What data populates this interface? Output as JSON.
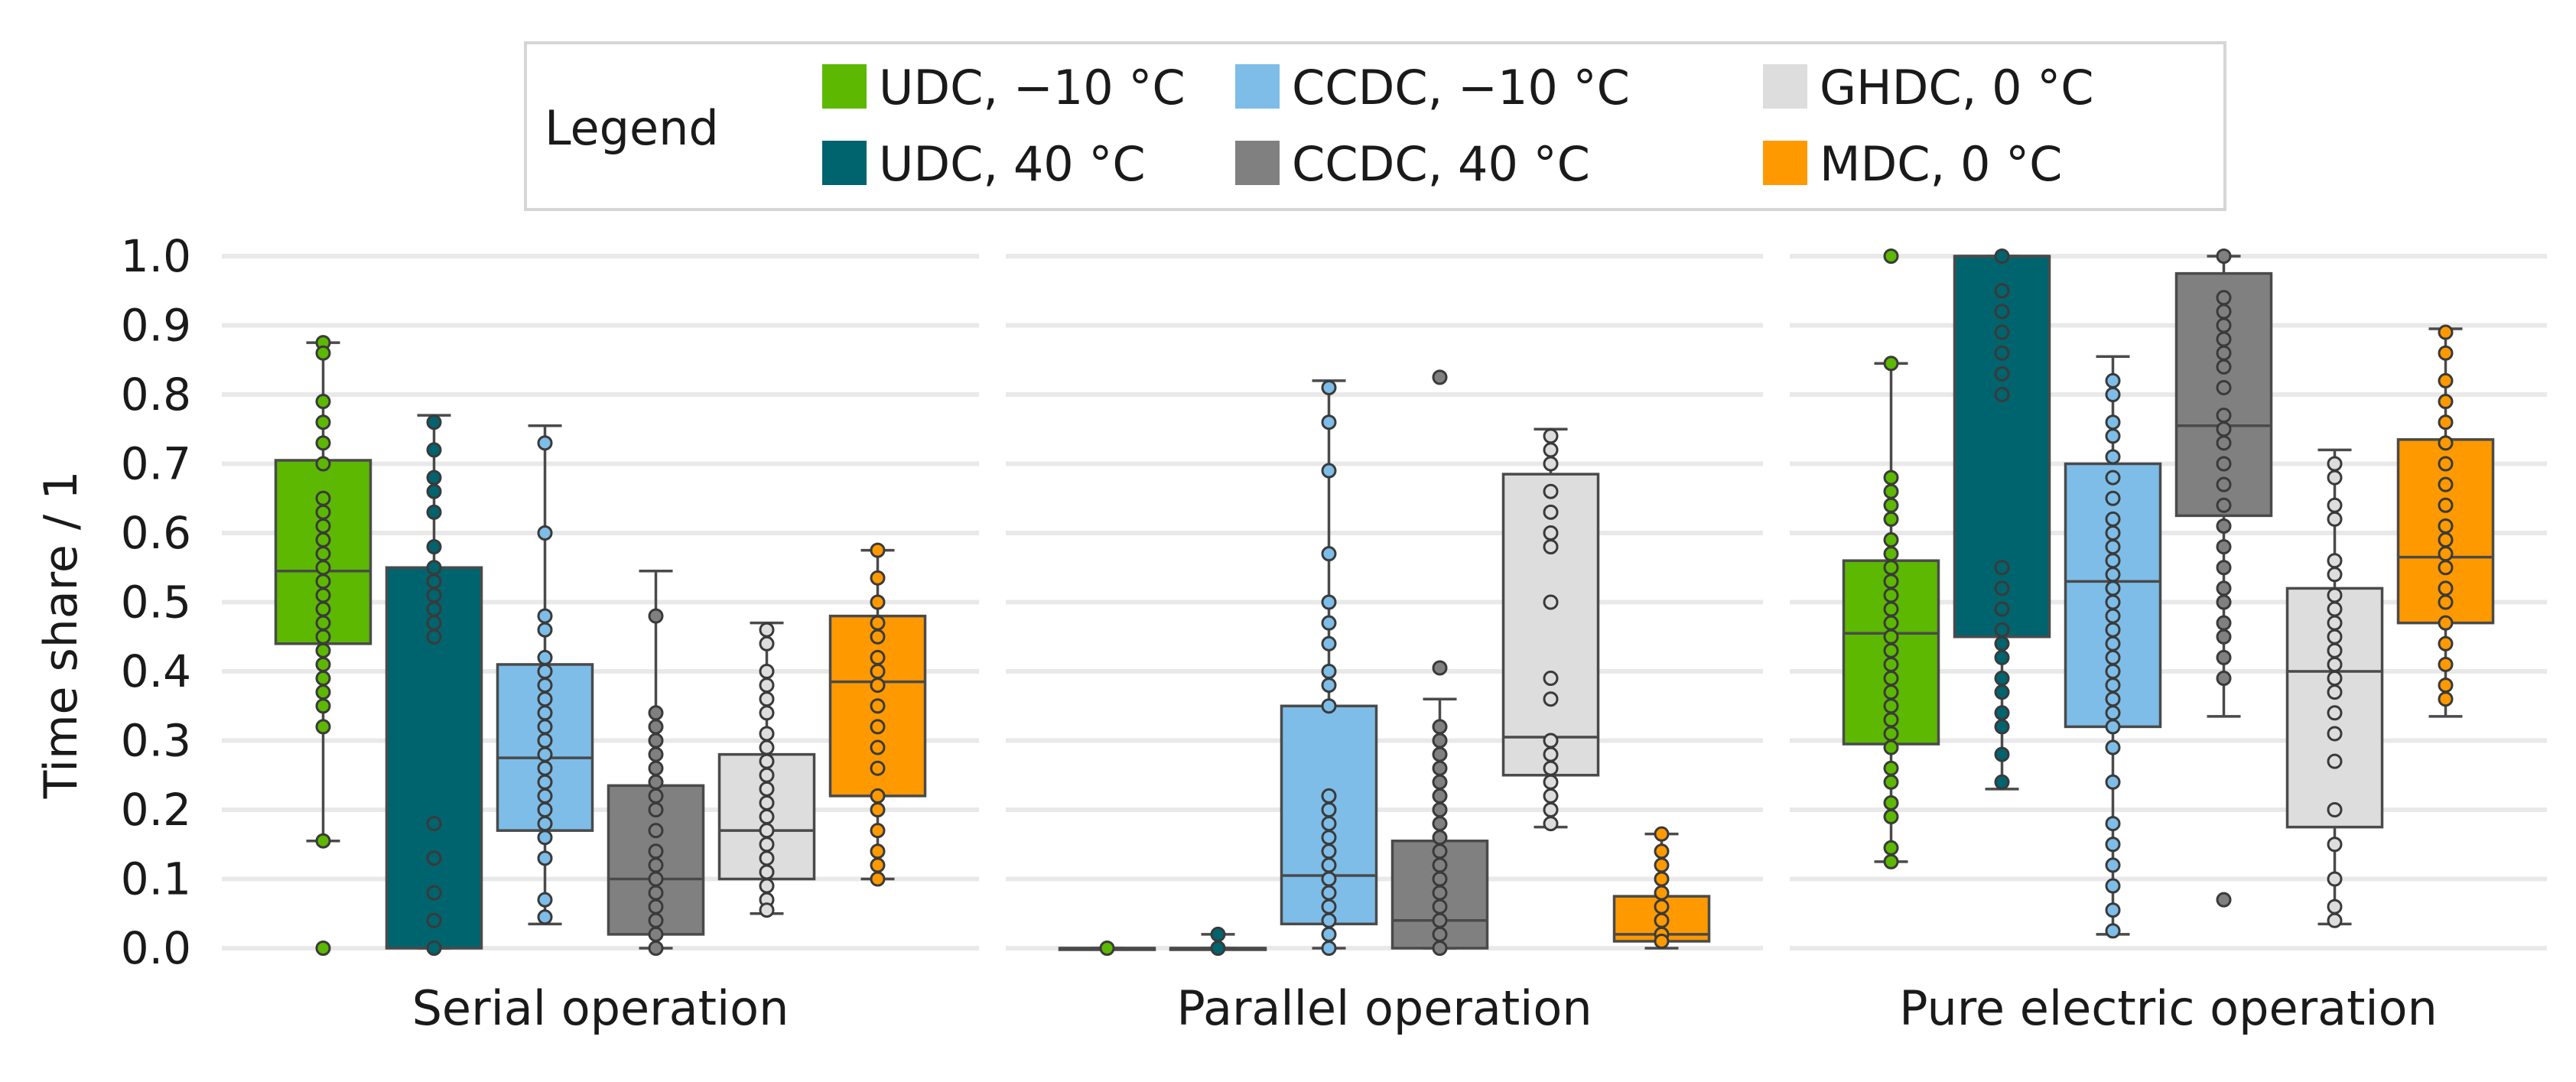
{
  "chart_data": {
    "type": "box",
    "ylabel": "Time share / 1",
    "ylim": [
      0,
      1
    ],
    "yticks": [
      "0.0",
      "0.1",
      "0.2",
      "0.3",
      "0.4",
      "0.5",
      "0.6",
      "0.7",
      "0.8",
      "0.9",
      "1.0"
    ],
    "legend": {
      "title": "Legend",
      "placement": "top-center",
      "entries": [
        {
          "label": "UDC, −10 °C",
          "color": "#5cb800"
        },
        {
          "label": "UDC, 40 °C",
          "color": "#00646e"
        },
        {
          "label": "CCDC, −10 °C",
          "color": "#7dbde8"
        },
        {
          "label": "CCDC, 40 °C",
          "color": "#808080"
        },
        {
          "label": "GHDC, 0 °C",
          "color": "#dddddd"
        },
        {
          "label": "MDC, 0 °C",
          "color": "#ff9900"
        }
      ]
    },
    "categories": [
      "Serial operation",
      "Parallel operation",
      "Pure electric operation"
    ],
    "series": [
      {
        "name": "UDC, −10 °C",
        "color": "#5cb800",
        "boxes": [
          {
            "q1": 0.44,
            "median": 0.545,
            "q3": 0.705,
            "whisker_low": 0.155,
            "whisker_high": 0.875,
            "points": [
              0.875,
              0.86,
              0.79,
              0.76,
              0.73,
              0.7,
              0.65,
              0.63,
              0.61,
              0.59,
              0.57,
              0.55,
              0.53,
              0.51,
              0.49,
              0.47,
              0.45,
              0.43,
              0.41,
              0.39,
              0.37,
              0.35,
              0.32,
              0.155,
              0.0
            ]
          },
          {
            "q1": 0.0,
            "median": 0.0,
            "q3": 0.0,
            "whisker_low": 0.0,
            "whisker_high": 0.0,
            "points": [
              0.0
            ]
          },
          {
            "q1": 0.295,
            "median": 0.455,
            "q3": 0.56,
            "whisker_low": 0.125,
            "whisker_high": 0.845,
            "points": [
              1.0,
              0.845,
              0.68,
              0.66,
              0.64,
              0.62,
              0.59,
              0.57,
              0.55,
              0.53,
              0.51,
              0.49,
              0.47,
              0.45,
              0.43,
              0.41,
              0.39,
              0.37,
              0.35,
              0.33,
              0.31,
              0.29,
              0.26,
              0.24,
              0.21,
              0.19,
              0.145,
              0.125
            ]
          }
        ]
      },
      {
        "name": "UDC, 40 °C",
        "color": "#00646e",
        "boxes": [
          {
            "q1": 0.0,
            "median": 0.55,
            "q3": 0.55,
            "whisker_low": 0.0,
            "whisker_high": 0.77,
            "points": [
              0.76,
              0.72,
              0.68,
              0.66,
              0.63,
              0.58,
              0.55,
              0.53,
              0.51,
              0.49,
              0.47,
              0.45,
              0.18,
              0.13,
              0.08,
              0.04,
              0.0
            ]
          },
          {
            "q1": 0.0,
            "median": 0.0,
            "q3": 0.0,
            "whisker_low": 0.0,
            "whisker_high": 0.02,
            "points": [
              0.02,
              0.0
            ]
          },
          {
            "q1": 0.45,
            "median": 1.0,
            "q3": 1.0,
            "whisker_low": 0.23,
            "whisker_high": 1.0,
            "points": [
              1.0,
              0.95,
              0.92,
              0.89,
              0.86,
              0.83,
              0.8,
              0.55,
              0.52,
              0.49,
              0.46,
              0.44,
              0.42,
              0.39,
              0.37,
              0.34,
              0.32,
              0.28,
              0.24
            ]
          }
        ]
      },
      {
        "name": "CCDC, −10 °C",
        "color": "#7dbde8",
        "boxes": [
          {
            "q1": 0.17,
            "median": 0.275,
            "q3": 0.41,
            "whisker_low": 0.035,
            "whisker_high": 0.755,
            "points": [
              0.73,
              0.6,
              0.48,
              0.46,
              0.42,
              0.4,
              0.38,
              0.36,
              0.34,
              0.32,
              0.3,
              0.28,
              0.26,
              0.24,
              0.22,
              0.2,
              0.18,
              0.16,
              0.13,
              0.07,
              0.045
            ]
          },
          {
            "q1": 0.035,
            "median": 0.105,
            "q3": 0.35,
            "whisker_low": 0.0,
            "whisker_high": 0.82,
            "points": [
              0.81,
              0.76,
              0.69,
              0.57,
              0.5,
              0.47,
              0.44,
              0.4,
              0.38,
              0.35,
              0.22,
              0.2,
              0.18,
              0.16,
              0.14,
              0.12,
              0.1,
              0.08,
              0.06,
              0.04,
              0.02,
              0.0
            ]
          },
          {
            "q1": 0.32,
            "median": 0.53,
            "q3": 0.7,
            "whisker_low": 0.02,
            "whisker_high": 0.855,
            "points": [
              0.82,
              0.8,
              0.76,
              0.74,
              0.71,
              0.68,
              0.65,
              0.62,
              0.6,
              0.58,
              0.56,
              0.54,
              0.52,
              0.5,
              0.48,
              0.46,
              0.44,
              0.42,
              0.4,
              0.38,
              0.36,
              0.34,
              0.32,
              0.29,
              0.24,
              0.18,
              0.15,
              0.12,
              0.09,
              0.055,
              0.025
            ]
          }
        ]
      },
      {
        "name": "CCDC, 40 °C",
        "color": "#808080",
        "boxes": [
          {
            "q1": 0.02,
            "median": 0.1,
            "q3": 0.235,
            "whisker_low": 0.0,
            "whisker_high": 0.545,
            "points": [
              0.48,
              0.34,
              0.32,
              0.3,
              0.28,
              0.26,
              0.24,
              0.22,
              0.2,
              0.17,
              0.14,
              0.12,
              0.1,
              0.08,
              0.06,
              0.04,
              0.02,
              0.0
            ]
          },
          {
            "q1": 0.0,
            "median": 0.04,
            "q3": 0.155,
            "whisker_low": 0.0,
            "whisker_high": 0.36,
            "points": [
              0.825,
              0.405,
              0.32,
              0.3,
              0.28,
              0.26,
              0.24,
              0.22,
              0.2,
              0.18,
              0.16,
              0.14,
              0.12,
              0.1,
              0.08,
              0.06,
              0.04,
              0.02,
              0.0
            ]
          },
          {
            "q1": 0.625,
            "median": 0.755,
            "q3": 0.975,
            "whisker_low": 0.335,
            "whisker_high": 1.0,
            "points": [
              1.0,
              0.94,
              0.92,
              0.9,
              0.88,
              0.86,
              0.84,
              0.81,
              0.77,
              0.75,
              0.73,
              0.7,
              0.67,
              0.64,
              0.61,
              0.58,
              0.55,
              0.52,
              0.5,
              0.47,
              0.45,
              0.42,
              0.39,
              0.07
            ]
          }
        ]
      },
      {
        "name": "GHDC, 0 °C",
        "color": "#dddddd",
        "boxes": [
          {
            "q1": 0.1,
            "median": 0.17,
            "q3": 0.28,
            "whisker_low": 0.05,
            "whisker_high": 0.47,
            "points": [
              0.46,
              0.44,
              0.4,
              0.38,
              0.36,
              0.34,
              0.31,
              0.29,
              0.27,
              0.25,
              0.23,
              0.21,
              0.19,
              0.17,
              0.15,
              0.13,
              0.11,
              0.09,
              0.07,
              0.055
            ]
          },
          {
            "q1": 0.25,
            "median": 0.305,
            "q3": 0.685,
            "whisker_low": 0.175,
            "whisker_high": 0.75,
            "points": [
              0.74,
              0.72,
              0.7,
              0.66,
              0.63,
              0.6,
              0.58,
              0.5,
              0.39,
              0.36,
              0.3,
              0.28,
              0.26,
              0.24,
              0.22,
              0.2,
              0.18
            ]
          },
          {
            "q1": 0.175,
            "median": 0.4,
            "q3": 0.52,
            "whisker_low": 0.035,
            "whisker_high": 0.72,
            "points": [
              0.7,
              0.68,
              0.64,
              0.62,
              0.56,
              0.54,
              0.51,
              0.49,
              0.47,
              0.45,
              0.43,
              0.41,
              0.39,
              0.37,
              0.34,
              0.31,
              0.27,
              0.2,
              0.15,
              0.1,
              0.06,
              0.04
            ]
          }
        ]
      },
      {
        "name": "MDC, 0 °C",
        "color": "#ff9900",
        "boxes": [
          {
            "q1": 0.22,
            "median": 0.385,
            "q3": 0.48,
            "whisker_low": 0.1,
            "whisker_high": 0.575,
            "points": [
              0.575,
              0.535,
              0.5,
              0.47,
              0.45,
              0.42,
              0.4,
              0.38,
              0.35,
              0.32,
              0.29,
              0.26,
              0.22,
              0.2,
              0.17,
              0.14,
              0.12,
              0.1
            ]
          },
          {
            "q1": 0.01,
            "median": 0.02,
            "q3": 0.075,
            "whisker_low": 0.0,
            "whisker_high": 0.165,
            "points": [
              0.165,
              0.14,
              0.12,
              0.1,
              0.08,
              0.06,
              0.04,
              0.02,
              0.01
            ]
          },
          {
            "q1": 0.47,
            "median": 0.565,
            "q3": 0.735,
            "whisker_low": 0.335,
            "whisker_high": 0.895,
            "points": [
              0.89,
              0.86,
              0.82,
              0.79,
              0.76,
              0.73,
              0.7,
              0.67,
              0.64,
              0.61,
              0.59,
              0.57,
              0.55,
              0.52,
              0.5,
              0.47,
              0.44,
              0.41,
              0.38,
              0.36
            ]
          }
        ]
      }
    ]
  }
}
